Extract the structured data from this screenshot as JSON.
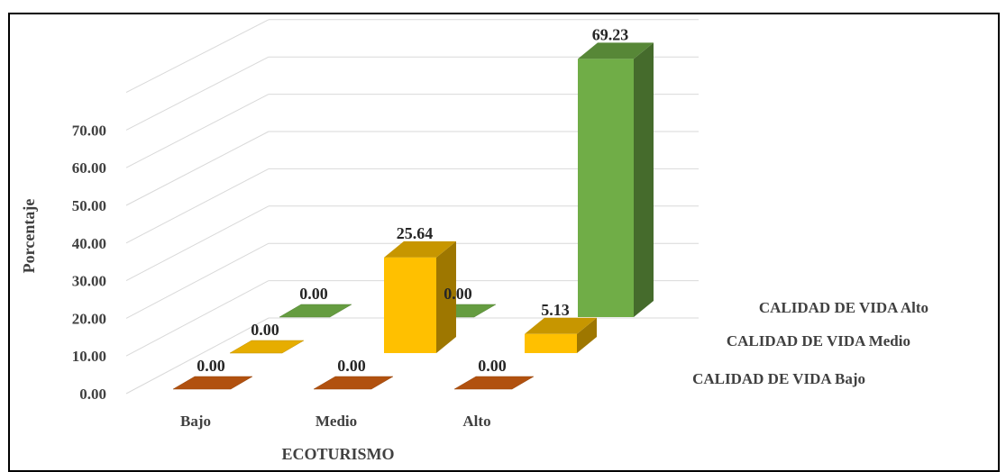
{
  "chart_data": {
    "type": "bar",
    "title": "",
    "xlabel": "ECOTURISMO",
    "ylabel": "Porcentaje",
    "categories": [
      "Bajo",
      "Medio",
      "Alto"
    ],
    "yticks": [
      "0.00",
      "10.00",
      "20.00",
      "30.00",
      "40.00",
      "50.00",
      "60.00",
      "70.00"
    ],
    "ylim": [
      0,
      70
    ],
    "grid": true,
    "style": "3d-column",
    "series": [
      {
        "name": "CALIDAD DE VIDA Bajo",
        "values": [
          0.0,
          0.0,
          0.0
        ],
        "labels": [
          "0.00",
          "0.00",
          "0.00"
        ],
        "color": "#C55A11"
      },
      {
        "name": "CALIDAD DE VIDA Medio",
        "values": [
          0.0,
          25.64,
          5.13
        ],
        "labels": [
          "0.00",
          "25.64",
          "5.13"
        ],
        "color": "#FFC000"
      },
      {
        "name": "CALIDAD DE VIDA Alto",
        "values": [
          0.0,
          0.0,
          69.23
        ],
        "labels": [
          "0.00",
          "0.00",
          "69.23"
        ],
        "color": "#70AD47"
      }
    ]
  }
}
